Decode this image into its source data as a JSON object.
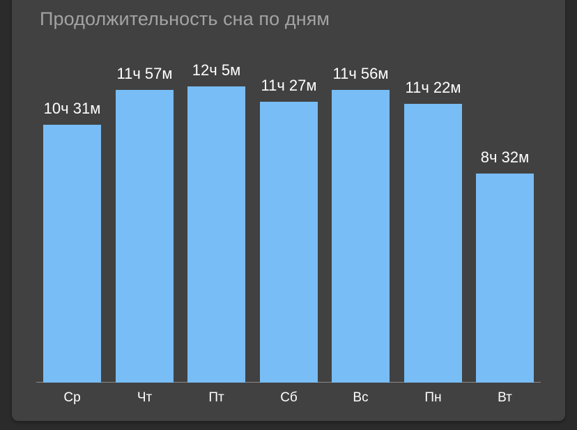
{
  "title": "Продолжительность сна по дням",
  "colors": {
    "bar": "#78bdf5",
    "background": "#414141",
    "title": "#a3a3a3",
    "text": "#ffffff"
  },
  "chart_data": {
    "type": "bar",
    "title": "Продолжительность сна по дням",
    "xlabel": "",
    "ylabel": "",
    "categories": [
      "Ср",
      "Чт",
      "Пт",
      "Сб",
      "Вс",
      "Пн",
      "Вт"
    ],
    "values": [
      631,
      717,
      725,
      687,
      716,
      682,
      512
    ],
    "value_unit": "minutes",
    "labels": [
      "10ч 31м",
      "11ч 57м",
      "12ч 5м",
      "11ч 27м",
      "11ч 56м",
      "11ч 22м",
      "8ч 32м"
    ],
    "grid": false,
    "legend": null,
    "ylim": [
      0,
      725
    ]
  }
}
